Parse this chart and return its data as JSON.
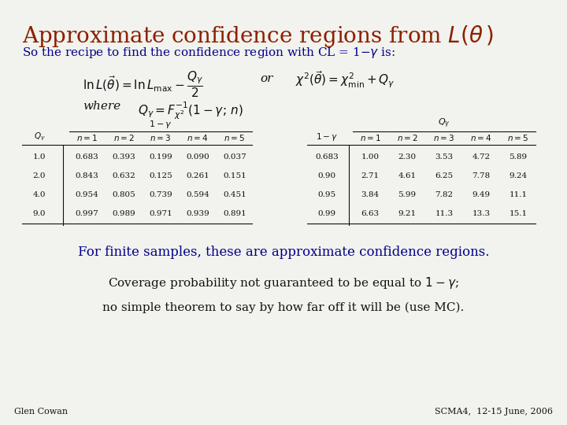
{
  "title": "Approximate confidence regions from $L(\\theta\\,)$",
  "title_color": "#8B2000",
  "subtitle": "So the recipe to find the confidence region with CL = 1− $\\gamma$ is:",
  "subtitle_color": "#00008B",
  "table1_rows": [
    [
      "1.0",
      "0.683",
      "0.393",
      "0.199",
      "0.090",
      "0.037"
    ],
    [
      "2.0",
      "0.843",
      "0.632",
      "0.125",
      "0.261",
      "0.151"
    ],
    [
      "4.0",
      "0.954",
      "0.805",
      "0.739",
      "0.594",
      "0.451"
    ],
    [
      "9.0",
      "0.997",
      "0.989",
      "0.971",
      "0.939",
      "0.891"
    ]
  ],
  "table2_rows": [
    [
      "0.683",
      "1.00",
      "2.30",
      "3.53",
      "4.72",
      "5.89"
    ],
    [
      "0.90",
      "2.71",
      "4.61",
      "6.25",
      "7.78",
      "9.24"
    ],
    [
      "0.95",
      "3.84",
      "5.99",
      "7.82",
      "9.49",
      "11.1"
    ],
    [
      "0.99",
      "6.63",
      "9.21",
      "11.3",
      "13.3",
      "15.1"
    ]
  ],
  "text1": "For finite samples, these are approximate confidence regions.",
  "text1_color": "#00008B",
  "text2": "Coverage probability not guaranteed to be equal to 1−$\\gamma$;",
  "text3": "no simple theorem to say by how far off it will be (use MC).",
  "footer_left": "Glen Cowan",
  "footer_right": "SCMA4,  12-15 June, 2006",
  "bg_color": "#f2f2ee",
  "dark_blue": "#00008B",
  "black": "#111111"
}
